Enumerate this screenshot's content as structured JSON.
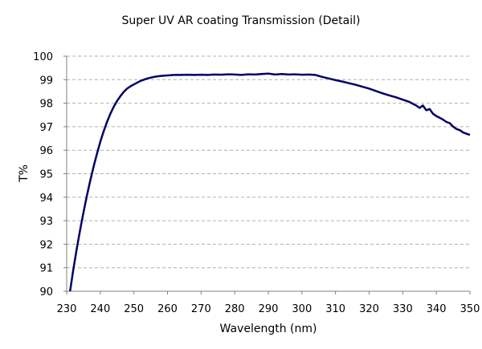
{
  "chart_data": {
    "type": "line",
    "title": "Super UV AR coating Transmission (Detail)",
    "xlabel": "Wavelength (nm)",
    "ylabel": "T%",
    "xlim": [
      230,
      350
    ],
    "ylim": [
      90,
      100
    ],
    "x_ticks": [
      230,
      240,
      250,
      260,
      270,
      280,
      290,
      300,
      310,
      320,
      330,
      340,
      350
    ],
    "y_ticks": [
      90,
      91,
      92,
      93,
      94,
      95,
      96,
      97,
      98,
      99,
      100
    ],
    "grid": "horizontal-dashed",
    "line_color": "#000066",
    "series": [
      {
        "name": "T%",
        "x": [
          231,
          232,
          233,
          234,
          235,
          236,
          237,
          238,
          239,
          240,
          241,
          242,
          243,
          244,
          245,
          246,
          247,
          248,
          249,
          250,
          252,
          254,
          256,
          258,
          260,
          262,
          264,
          266,
          268,
          270,
          272,
          274,
          276,
          278,
          280,
          282,
          284,
          286,
          288,
          290,
          292,
          294,
          296,
          298,
          300,
          302,
          304,
          306,
          308,
          310,
          312,
          314,
          316,
          318,
          320,
          322,
          324,
          326,
          328,
          330,
          332,
          334,
          335,
          336,
          337,
          338,
          339,
          340,
          341,
          342,
          343,
          344,
          345,
          346,
          347,
          348,
          349,
          350
        ],
        "values": [
          90.0,
          90.95,
          91.8,
          92.6,
          93.35,
          94.05,
          94.7,
          95.3,
          95.85,
          96.35,
          96.8,
          97.2,
          97.55,
          97.85,
          98.1,
          98.3,
          98.48,
          98.62,
          98.72,
          98.8,
          98.95,
          99.05,
          99.12,
          99.16,
          99.18,
          99.2,
          99.2,
          99.21,
          99.2,
          99.21,
          99.2,
          99.22,
          99.21,
          99.23,
          99.22,
          99.2,
          99.23,
          99.22,
          99.24,
          99.26,
          99.22,
          99.24,
          99.22,
          99.23,
          99.21,
          99.22,
          99.2,
          99.12,
          99.05,
          98.98,
          98.92,
          98.85,
          98.78,
          98.7,
          98.62,
          98.52,
          98.42,
          98.33,
          98.25,
          98.15,
          98.05,
          97.9,
          97.8,
          97.9,
          97.7,
          97.75,
          97.55,
          97.45,
          97.38,
          97.3,
          97.2,
          97.15,
          97.0,
          96.9,
          96.85,
          96.75,
          96.7,
          96.65
        ]
      }
    ]
  }
}
